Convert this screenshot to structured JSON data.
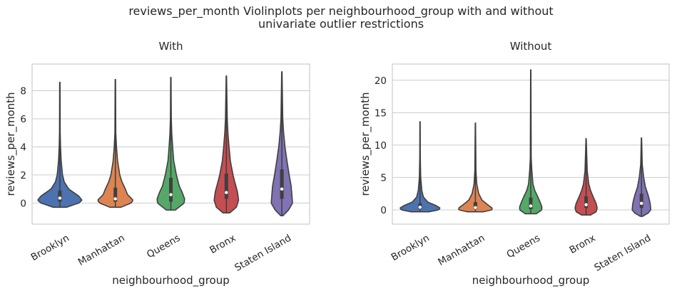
{
  "suptitle": {
    "line1": "reviews_per_month Violinplots per neighbourhood_group with and without",
    "line2": "univariate outlier restrictions"
  },
  "chart_data": [
    {
      "type": "violin",
      "title": "With",
      "xlabel": "neighbourhood_group",
      "ylabel": "reviews_per_month",
      "categories": [
        "Brooklyn",
        "Manhattan",
        "Queens",
        "Bronx",
        "Staten Island"
      ],
      "colors": [
        "#4c72b0",
        "#dd8452",
        "#55a868",
        "#c44e52",
        "#8172b3"
      ],
      "ylim": [
        -1.5,
        9.9
      ],
      "yticks": [
        0,
        2,
        4,
        6,
        8
      ],
      "grid": true,
      "series": [
        {
          "name": "Brooklyn",
          "min": -0.3,
          "max": 8.6,
          "q1": 0.1,
          "median": 0.35,
          "q3": 0.9,
          "profile": [
            [
              -0.3,
              0.3
            ],
            [
              0,
              0.85
            ],
            [
              0.2,
              1
            ],
            [
              0.5,
              0.85
            ],
            [
              1,
              0.4
            ],
            [
              1.5,
              0.2
            ],
            [
              2,
              0.12
            ],
            [
              3,
              0.06
            ],
            [
              4,
              0.03
            ],
            [
              5,
              0.015
            ],
            [
              8.6,
              0.008
            ]
          ]
        },
        {
          "name": "Manhattan",
          "min": -0.3,
          "max": 8.8,
          "q1": 0.1,
          "median": 0.3,
          "q3": 1.1,
          "profile": [
            [
              -0.3,
              0.25
            ],
            [
              0,
              0.7
            ],
            [
              0.2,
              0.8
            ],
            [
              0.6,
              0.55
            ],
            [
              1,
              0.45
            ],
            [
              1.5,
              0.3
            ],
            [
              2,
              0.2
            ],
            [
              3,
              0.1
            ],
            [
              4,
              0.05
            ],
            [
              5,
              0.02
            ],
            [
              8.8,
              0.008
            ]
          ]
        },
        {
          "name": "Queens",
          "min": -0.5,
          "max": 8.95,
          "q1": 0.1,
          "median": 0.6,
          "q3": 1.8,
          "profile": [
            [
              -0.5,
              0.2
            ],
            [
              0,
              0.6
            ],
            [
              0.3,
              0.62
            ],
            [
              0.8,
              0.5
            ],
            [
              1.2,
              0.38
            ],
            [
              2,
              0.25
            ],
            [
              3,
              0.13
            ],
            [
              4,
              0.08
            ],
            [
              5,
              0.04
            ],
            [
              6,
              0.02
            ],
            [
              8.95,
              0.008
            ]
          ]
        },
        {
          "name": "Bronx",
          "min": -0.7,
          "max": 9.05,
          "q1": 0.3,
          "median": 0.75,
          "q3": 2.1,
          "profile": [
            [
              -0.7,
              0.15
            ],
            [
              -0.3,
              0.45
            ],
            [
              0.2,
              0.55
            ],
            [
              0.8,
              0.5
            ],
            [
              1.5,
              0.38
            ],
            [
              2,
              0.3
            ],
            [
              3,
              0.18
            ],
            [
              4,
              0.12
            ],
            [
              5,
              0.07
            ],
            [
              6,
              0.04
            ],
            [
              9.05,
              0.008
            ]
          ]
        },
        {
          "name": "Staten Island",
          "min": -0.9,
          "max": 9.35,
          "q1": 0.3,
          "median": 1.0,
          "q3": 2.4,
          "profile": [
            [
              -0.9,
              0.05
            ],
            [
              -0.5,
              0.3
            ],
            [
              0,
              0.48
            ],
            [
              0.6,
              0.45
            ],
            [
              1.2,
              0.42
            ],
            [
              2,
              0.33
            ],
            [
              3,
              0.23
            ],
            [
              4,
              0.14
            ],
            [
              5,
              0.08
            ],
            [
              6,
              0.04
            ],
            [
              9.35,
              0.008
            ]
          ]
        }
      ]
    },
    {
      "type": "violin",
      "title": "Without",
      "xlabel": "neighbourhood_group",
      "ylabel": "reviews_per_month",
      "categories": [
        "Brooklyn",
        "Manhattan",
        "Queens",
        "Bronx",
        "Staten Island"
      ],
      "colors": [
        "#4c72b0",
        "#dd8452",
        "#55a868",
        "#c44e52",
        "#8172b3"
      ],
      "ylim": [
        -2.2,
        22.5
      ],
      "yticks": [
        0,
        5,
        10,
        15,
        20
      ],
      "grid": true,
      "series": [
        {
          "name": "Brooklyn",
          "min": -0.3,
          "max": 13.6,
          "q1": 0.1,
          "median": 0.4,
          "q3": 1.0,
          "profile": [
            [
              -0.3,
              0.4
            ],
            [
              0,
              0.85
            ],
            [
              0.3,
              0.9
            ],
            [
              0.7,
              0.7
            ],
            [
              1.2,
              0.35
            ],
            [
              2,
              0.15
            ],
            [
              3,
              0.08
            ],
            [
              5,
              0.03
            ],
            [
              8,
              0.012
            ],
            [
              13.6,
              0.006
            ]
          ]
        },
        {
          "name": "Manhattan",
          "min": -0.3,
          "max": 13.4,
          "q1": 0.1,
          "median": 0.35,
          "q3": 1.2,
          "profile": [
            [
              -0.3,
              0.35
            ],
            [
              0,
              0.75
            ],
            [
              0.3,
              0.75
            ],
            [
              0.8,
              0.55
            ],
            [
              1.5,
              0.3
            ],
            [
              2.5,
              0.15
            ],
            [
              4,
              0.06
            ],
            [
              6,
              0.025
            ],
            [
              13.4,
              0.006
            ]
          ]
        },
        {
          "name": "Queens",
          "min": -0.6,
          "max": 21.6,
          "q1": 0.1,
          "median": 0.6,
          "q3": 1.9,
          "profile": [
            [
              -0.6,
              0.25
            ],
            [
              0,
              0.5
            ],
            [
              0.5,
              0.5
            ],
            [
              1.2,
              0.42
            ],
            [
              2,
              0.32
            ],
            [
              3,
              0.18
            ],
            [
              4,
              0.1
            ],
            [
              6,
              0.05
            ],
            [
              8,
              0.02
            ],
            [
              21.6,
              0.006
            ]
          ]
        },
        {
          "name": "Bronx",
          "min": -0.8,
          "max": 11.0,
          "q1": 0.3,
          "median": 0.8,
          "q3": 2.1,
          "profile": [
            [
              -0.8,
              0.2
            ],
            [
              -0.3,
              0.45
            ],
            [
              0.3,
              0.5
            ],
            [
              1,
              0.45
            ],
            [
              2,
              0.32
            ],
            [
              3,
              0.2
            ],
            [
              4,
              0.12
            ],
            [
              6,
              0.05
            ],
            [
              11,
              0.006
            ]
          ]
        },
        {
          "name": "Staten Island",
          "min": -1.0,
          "max": 11.1,
          "q1": 0.3,
          "median": 1.0,
          "q3": 2.5,
          "profile": [
            [
              -1.0,
              0.05
            ],
            [
              -0.5,
              0.3
            ],
            [
              0,
              0.42
            ],
            [
              0.8,
              0.4
            ],
            [
              1.5,
              0.36
            ],
            [
              2.5,
              0.28
            ],
            [
              3.5,
              0.18
            ],
            [
              5,
              0.1
            ],
            [
              7,
              0.035
            ],
            [
              11.1,
              0.006
            ]
          ]
        }
      ]
    }
  ]
}
